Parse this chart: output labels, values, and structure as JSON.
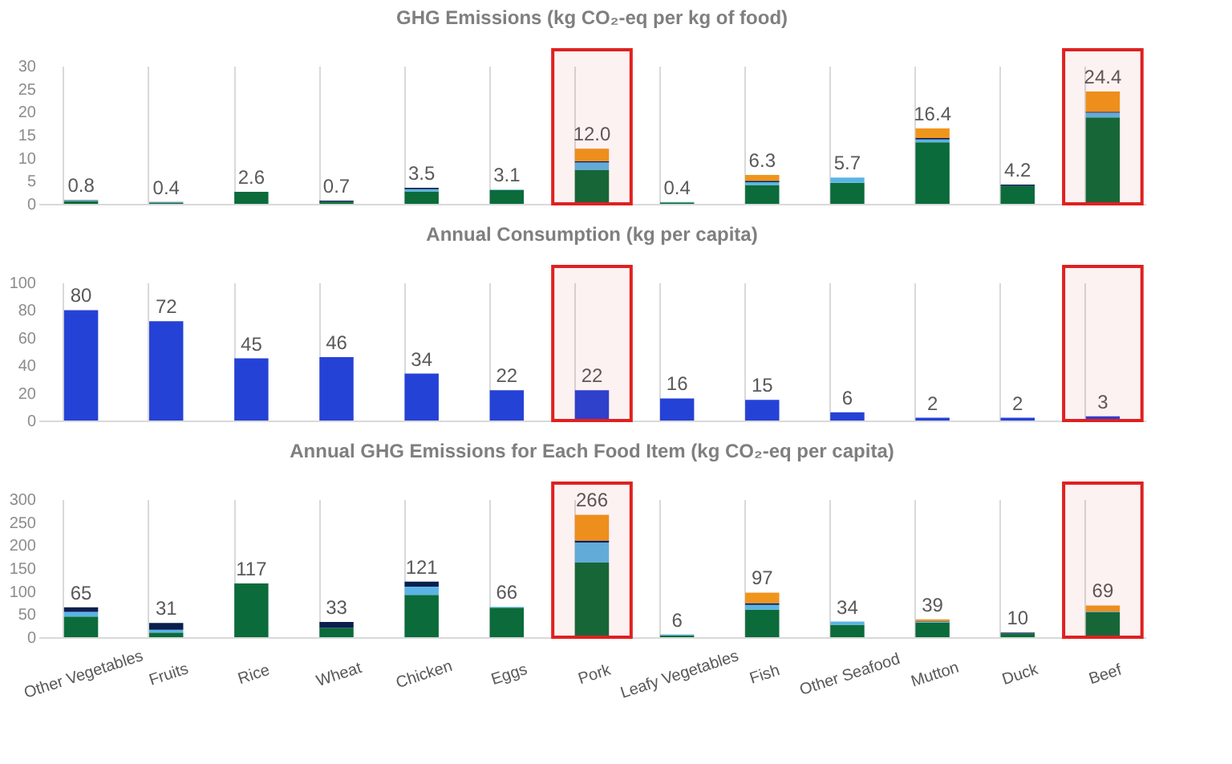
{
  "chart_data": [
    {
      "type": "bar",
      "title": "GHG Emissions (kg CO₂-eq per kg of food)",
      "stacked": true,
      "categories": [
        "Other Vegetables",
        "Fruits",
        "Rice",
        "Wheat",
        "Chicken",
        "Eggs",
        "Pork",
        "Leafy Vegetables",
        "Fish",
        "Other Seafood",
        "Mutton",
        "Duck",
        "Beef"
      ],
      "series": [
        {
          "color": "#0b6b3a",
          "values": [
            0.6,
            0.2,
            2.6,
            0.5,
            2.7,
            3.0,
            7.4,
            0.3,
            4.1,
            4.6,
            13.4,
            3.9,
            18.8
          ]
        },
        {
          "color": "#5bb4e5",
          "values": [
            0.1,
            0.1,
            0,
            0,
            0.5,
            0.1,
            1.6,
            0.1,
            0.6,
            1.1,
            0.6,
            0,
            1.0
          ]
        },
        {
          "color": "#0a1f4e",
          "values": [
            0.1,
            0.1,
            0,
            0.2,
            0.3,
            0,
            0.3,
            0,
            0.3,
            0,
            0.3,
            0.3,
            0.2
          ]
        },
        {
          "color": "#f0951c",
          "values": [
            0,
            0,
            0,
            0,
            0,
            0,
            2.7,
            0,
            1.3,
            0,
            2.1,
            0,
            4.4
          ]
        }
      ],
      "totals": [
        "0.8",
        "0.4",
        "2.6",
        "0.7",
        "3.5",
        "3.1",
        "12.0",
        "0.4",
        "6.3",
        "5.7",
        "16.4",
        "4.2",
        "24.4"
      ],
      "ylim": [
        0,
        30
      ],
      "yticks": [
        0,
        5,
        10,
        15,
        20,
        25,
        30
      ],
      "grid": "x",
      "tick_labels": "y",
      "bands": [
        {
          "axis": "x",
          "from": "Pork",
          "to": "Pork",
          "color": "#e02020"
        },
        {
          "axis": "x",
          "from": "Beef",
          "to": "Beef",
          "color": "#e02020"
        }
      ]
    },
    {
      "type": "bar",
      "title": "Annual Consumption (kg per capita)",
      "categories": [
        "Other Vegetables",
        "Fruits",
        "Rice",
        "Wheat",
        "Chicken",
        "Eggs",
        "Pork",
        "Leafy Vegetables",
        "Fish",
        "Other Seafood",
        "Mutton",
        "Duck",
        "Beef"
      ],
      "values": [
        80,
        72,
        45,
        46,
        34,
        22,
        22,
        16,
        15,
        6,
        2,
        2,
        3
      ],
      "color": "#2542d6",
      "data_labels": true,
      "ylim": [
        0,
        100
      ],
      "yticks": [
        0,
        20,
        40,
        60,
        80,
        100
      ],
      "grid": "x",
      "tick_labels": "y",
      "bands": [
        {
          "axis": "x",
          "from": "Pork",
          "to": "Pork",
          "color": "#e02020"
        },
        {
          "axis": "x",
          "from": "Beef",
          "to": "Beef",
          "color": "#e02020"
        }
      ]
    },
    {
      "type": "bar",
      "title": "Annual GHG Emissions for Each Food Item (kg CO₂-eq per capita)",
      "stacked": true,
      "categories": [
        "Other Vegetables",
        "Fruits",
        "Rice",
        "Wheat",
        "Chicken",
        "Eggs",
        "Pork",
        "Leafy Vegetables",
        "Fish",
        "Other Seafood",
        "Mutton",
        "Duck",
        "Beef"
      ],
      "series": [
        {
          "color": "#0b6b3a",
          "values": [
            45,
            10,
            117,
            20,
            92,
            64,
            162,
            4,
            60,
            27,
            32,
            8,
            54
          ]
        },
        {
          "color": "#5bb4e5",
          "values": [
            10,
            6,
            0,
            0,
            18,
            2,
            44,
            2,
            10,
            7,
            2,
            0,
            2
          ]
        },
        {
          "color": "#0a1f4e",
          "values": [
            10,
            15,
            0,
            13,
            11,
            0,
            4,
            0,
            4,
            0,
            1,
            2,
            0
          ]
        },
        {
          "color": "#f0951c",
          "values": [
            0,
            0,
            0,
            0,
            0,
            0,
            56,
            0,
            23,
            0,
            4,
            0,
            13
          ]
        }
      ],
      "totals": [
        "65",
        "31",
        "117",
        "33",
        "121",
        "66",
        "266",
        "6",
        "97",
        "34",
        "39",
        "10",
        "69"
      ],
      "ylim": [
        0,
        300
      ],
      "yticks": [
        0,
        50,
        100,
        150,
        200,
        250,
        300
      ],
      "grid": "x",
      "bands": [
        {
          "axis": "x",
          "from": "Pork",
          "to": "Pork",
          "color": "#e02020"
        },
        {
          "axis": "x",
          "from": "Beef",
          "to": "Beef",
          "color": "#e02020"
        }
      ]
    }
  ]
}
